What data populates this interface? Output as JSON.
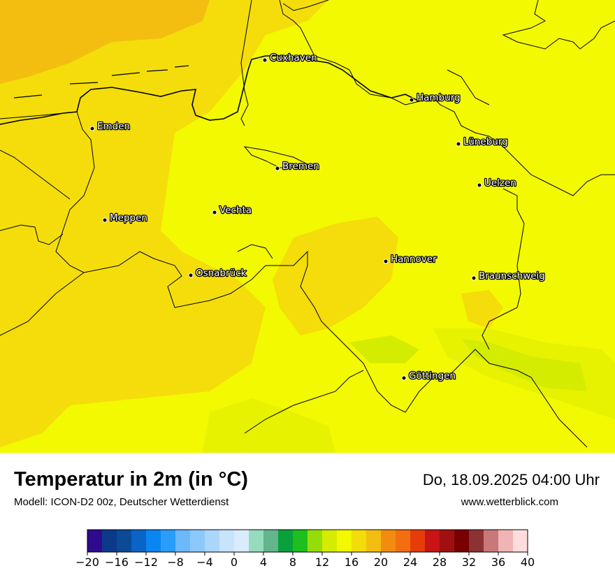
{
  "map": {
    "title": "Temperatur in 2m (in °C)",
    "model": "Modell: ICON-D2 00z, Deutscher Wetterdienst",
    "datetime": "Do, 18.09.2025 04:00 Uhr",
    "website": "www.wetterblick.com",
    "colors": {
      "t12": "#d4ec00",
      "t14": "#e6f200",
      "t16": "#f3f900",
      "t18": "#f4dd0a",
      "t20": "#f3be10",
      "border": "#000000"
    },
    "cities": [
      {
        "name": "Cuxhaven"
      },
      {
        "name": "Hamburg"
      },
      {
        "name": "Emden"
      },
      {
        "name": "Lüneburg"
      },
      {
        "name": "Bremen"
      },
      {
        "name": "Uelzen"
      },
      {
        "name": "Vechta"
      },
      {
        "name": "Meppen"
      },
      {
        "name": "Hannover"
      },
      {
        "name": "Osnabrück"
      },
      {
        "name": "Braunschweig"
      },
      {
        "name": "Göttingen"
      }
    ]
  },
  "scale": {
    "unit": "°C",
    "ticks": [
      "−20",
      "−16",
      "−12",
      "−8",
      "−4",
      "0",
      "4",
      "8",
      "12",
      "16",
      "20",
      "24",
      "28",
      "32",
      "36",
      "40"
    ],
    "colors": [
      "#2e0a8c",
      "#0b3a8a",
      "#0a4a96",
      "#0a64c8",
      "#0a86f0",
      "#2a9cfa",
      "#6cb8fa",
      "#8cc8fa",
      "#aad6fc",
      "#c8e4fc",
      "#d8ecfc",
      "#96dcbc",
      "#64b48c",
      "#0aa03c",
      "#1ebe1e",
      "#96dc0a",
      "#d4ec00",
      "#f3f900",
      "#f2dc0a",
      "#f2be10",
      "#f28c10",
      "#f26e10",
      "#e63c0a",
      "#c81414",
      "#a01010",
      "#780000",
      "#8c3232",
      "#c87878",
      "#f0b4b4",
      "#fcdcdc"
    ]
  }
}
